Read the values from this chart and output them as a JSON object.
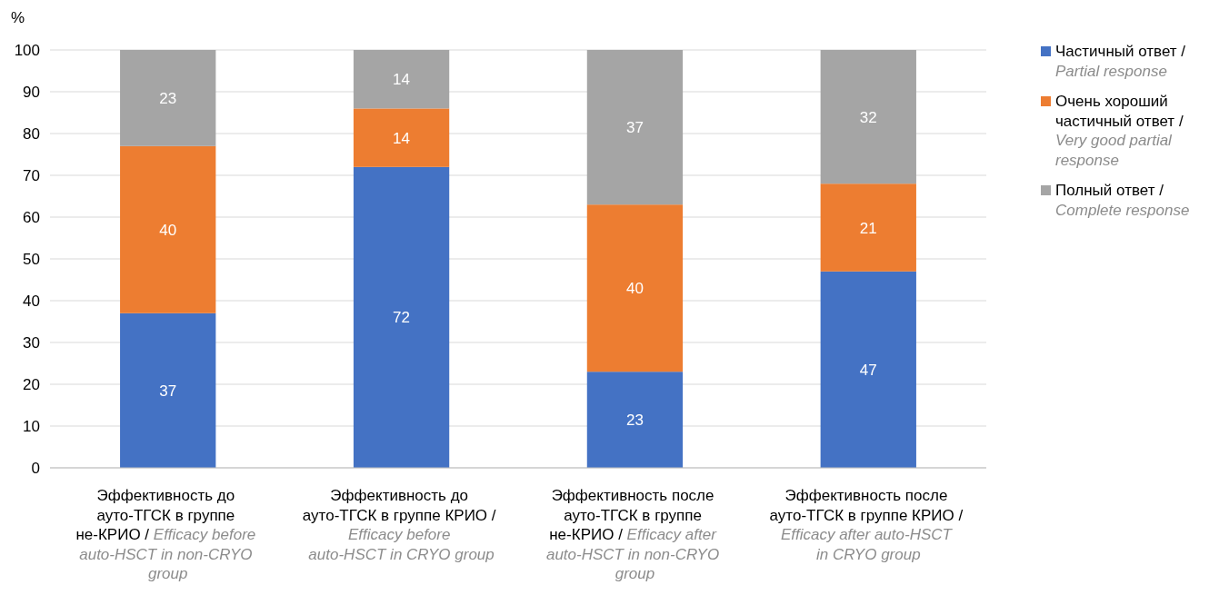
{
  "chart_data": {
    "type": "bar",
    "stacked": true,
    "ylabel": "%",
    "categories": [
      "Эффективность до ауто-ТГСК в группе не-КРИО / Efficacy before auto-HSCT in non-CRYO group",
      "Эффективность до ауто-ТГСК в группе КРИО / Efficacy before auto-HSCT in CRYO group",
      "Эффективность после ауто-ТГСК в группе не-КРИО / Efficacy after auto-HSCT in non-CRYO group",
      "Эффективность после ауто-ТГСК в группе КРИО / Efficacy after auto-HSCT in CRYO group"
    ],
    "series": [
      {
        "name": "Частичный ответ / Partial response",
        "color": "#4472c4",
        "values": [
          37,
          72,
          23,
          47
        ]
      },
      {
        "name": "Очень хороший частичный ответ / Very good partial response",
        "color": "#ed7d31",
        "values": [
          40,
          14,
          40,
          21
        ]
      },
      {
        "name": "Полный ответ / Complete response",
        "color": "#a5a5a5",
        "values": [
          23,
          14,
          37,
          32
        ]
      }
    ],
    "ylim": [
      0,
      100
    ],
    "yticks": [
      0,
      10,
      20,
      30,
      40,
      50,
      60,
      70,
      80,
      90,
      100
    ],
    "grid": "y",
    "legend": "right",
    "data_labels": true
  }
}
